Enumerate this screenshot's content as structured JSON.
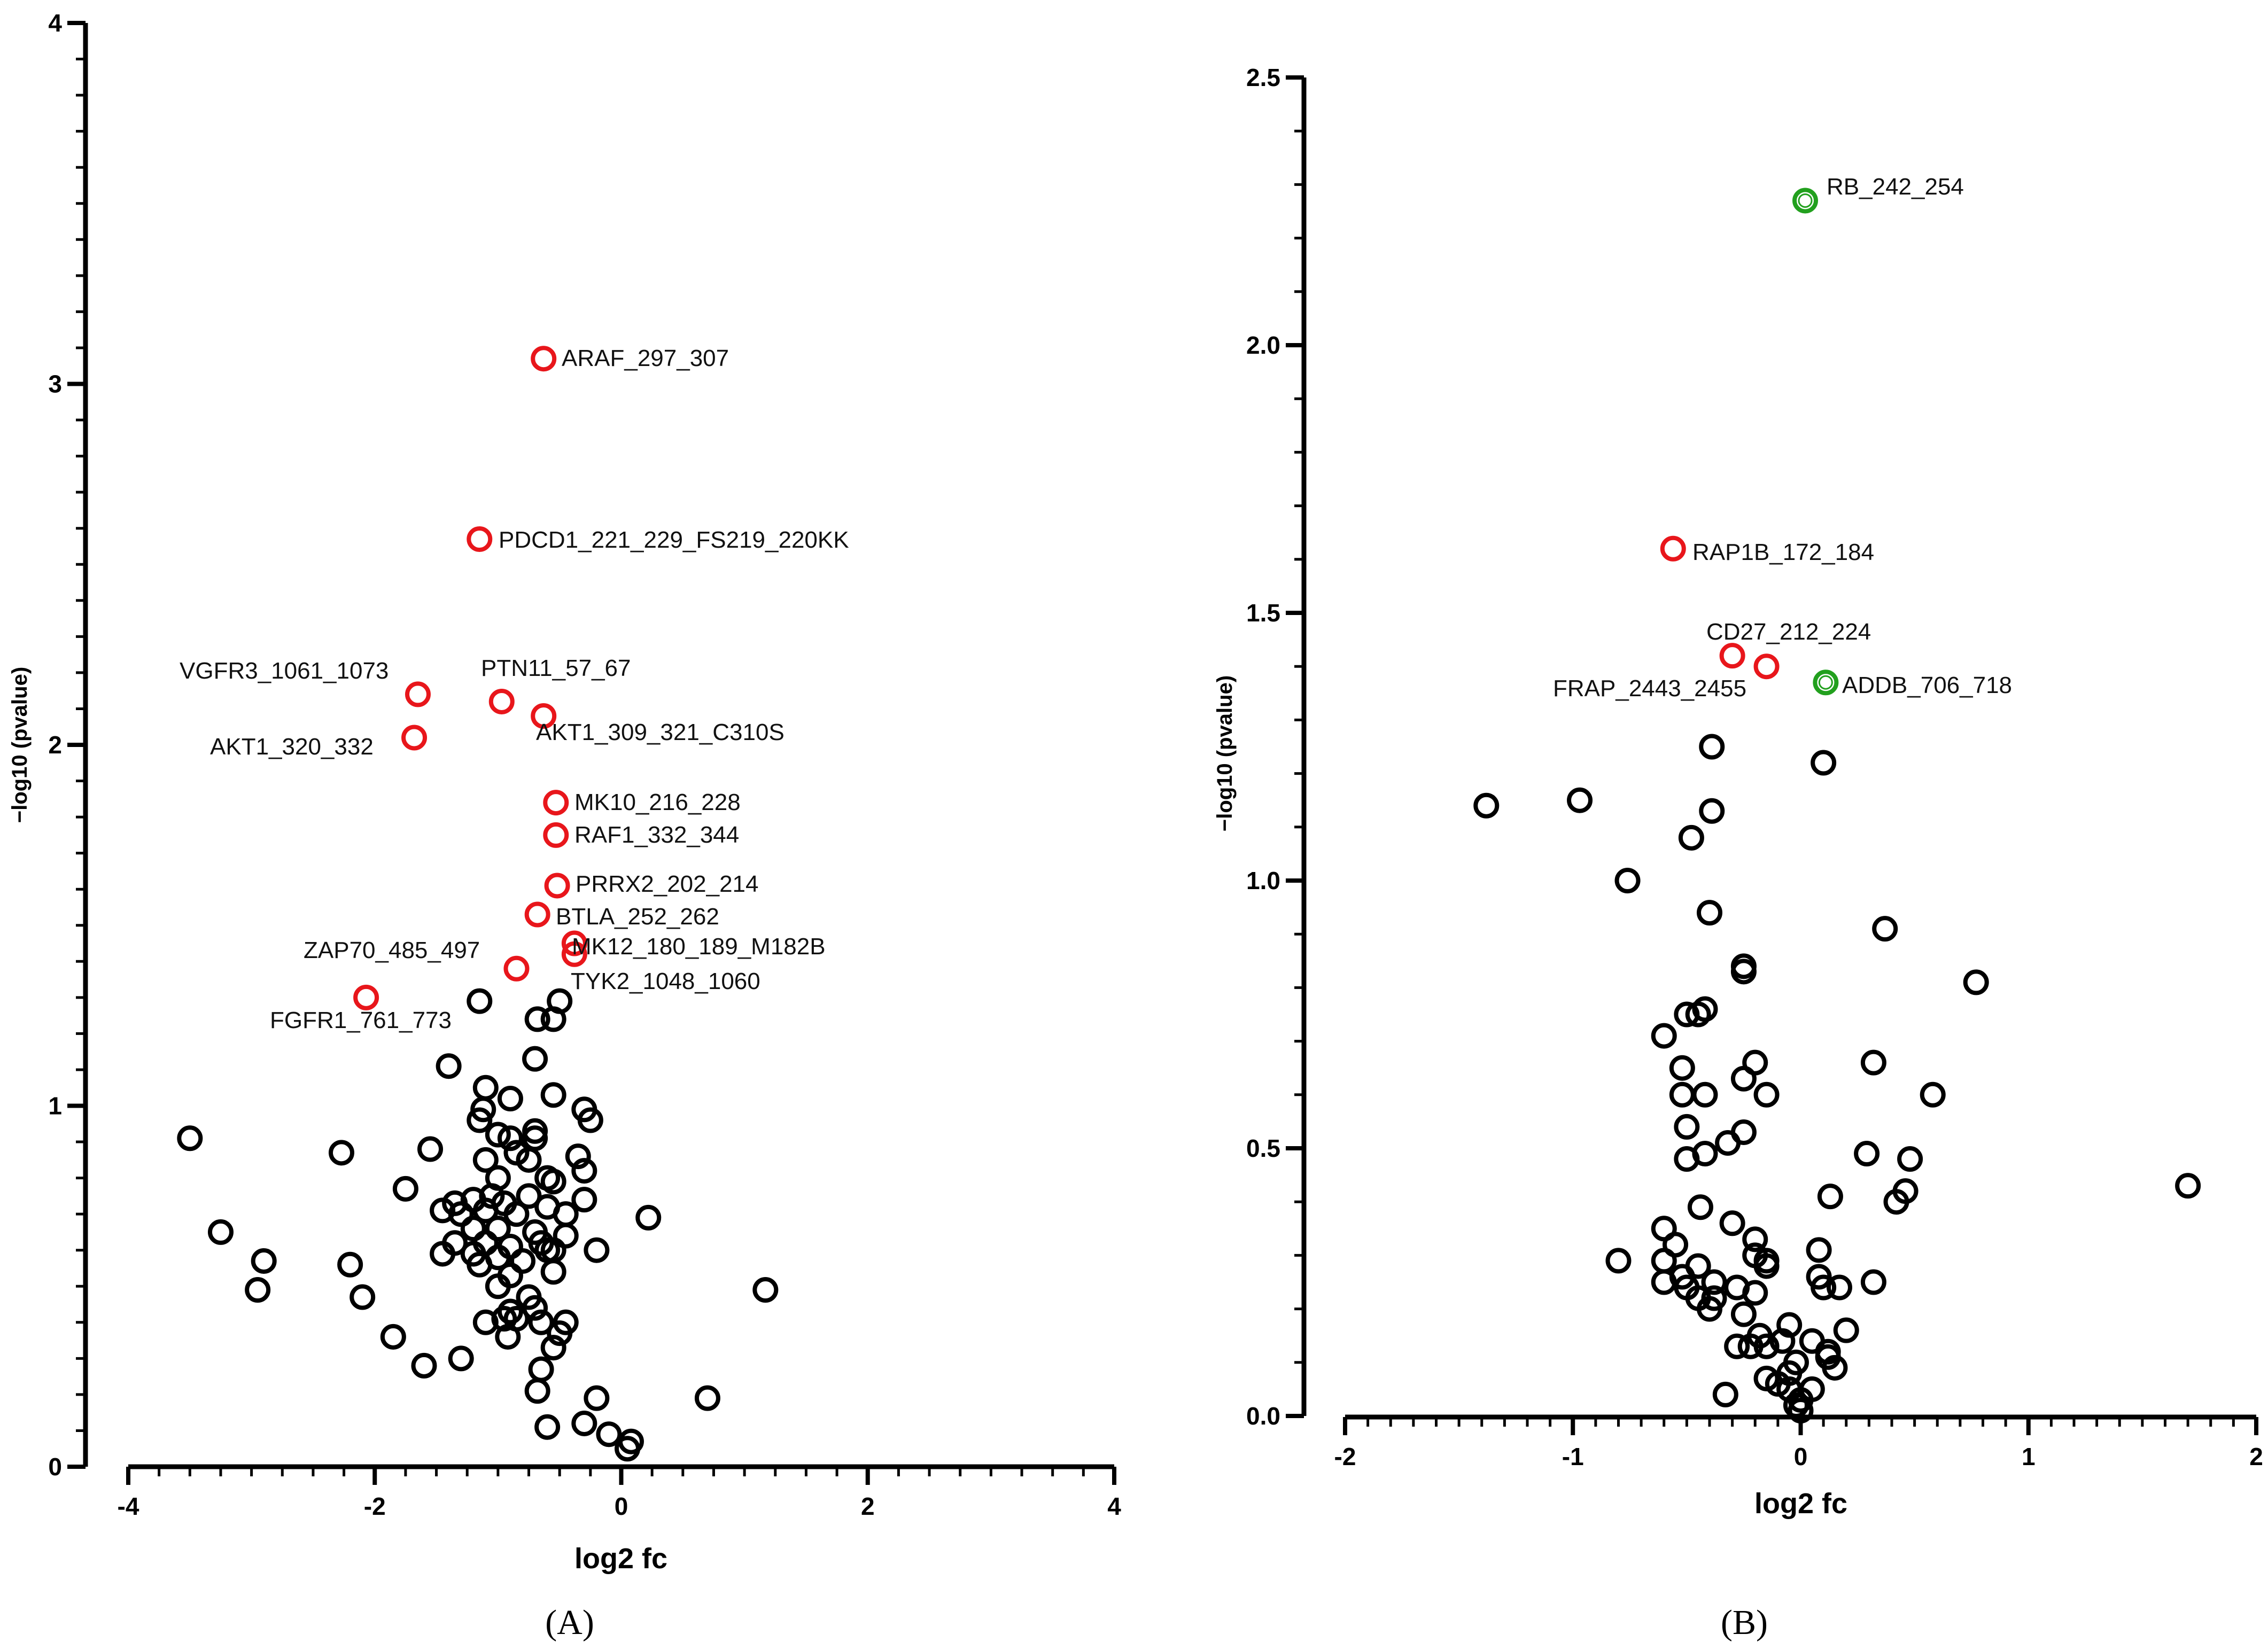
{
  "colors": {
    "normal": "#000000",
    "sig_red": "#e8161b",
    "sig_green": "#22a01e"
  },
  "chart_data": [
    {
      "type": "scatter",
      "panel_label": "(A)",
      "xlabel": "log2 fc",
      "ylabel": "−log10 (pvalue)",
      "xlim": [
        -4,
        4
      ],
      "ylim": [
        0,
        4
      ],
      "xticks": [
        -4,
        -2,
        0,
        2,
        4
      ],
      "yticks": [
        0,
        1,
        2,
        3,
        4
      ],
      "highlighted": [
        {
          "x": -0.63,
          "y": 3.07,
          "label": "ARAF_297_307",
          "color": "red"
        },
        {
          "x": -1.15,
          "y": 2.57,
          "label": "PDCD1_221_229_FS219_220KK",
          "color": "red"
        },
        {
          "x": -1.65,
          "y": 2.14,
          "label": "VGFR3_1061_1073",
          "color": "red"
        },
        {
          "x": -0.97,
          "y": 2.12,
          "label": "PTN11_57_67",
          "color": "red"
        },
        {
          "x": -0.63,
          "y": 2.08,
          "label": "AKT1_309_321_C310S",
          "color": "red"
        },
        {
          "x": -1.68,
          "y": 2.02,
          "label": "AKT1_320_332",
          "color": "red"
        },
        {
          "x": -0.53,
          "y": 1.84,
          "label": "MK10_216_228",
          "color": "red"
        },
        {
          "x": -0.53,
          "y": 1.75,
          "label": "RAF1_332_344",
          "color": "red"
        },
        {
          "x": -0.52,
          "y": 1.61,
          "label": "PRRX2_202_214",
          "color": "red"
        },
        {
          "x": -0.68,
          "y": 1.53,
          "label": "BTLA_252_262",
          "color": "red"
        },
        {
          "x": -0.38,
          "y": 1.45,
          "label": "MK12_180_189_M182B",
          "color": "red"
        },
        {
          "x": -0.38,
          "y": 1.42,
          "label": "",
          "color": "red"
        },
        {
          "x": -0.85,
          "y": 1.38,
          "label": "ZAP70_485_497",
          "color": "red"
        },
        {
          "x": -2.07,
          "y": 1.3,
          "label": "FGFR1_761_773",
          "color": "red"
        }
      ],
      "callout_labels": [
        "TYK2_1048_1060"
      ],
      "points": [
        [
          -1.15,
          1.29
        ],
        [
          -0.5,
          1.29
        ],
        [
          -0.55,
          1.24
        ],
        [
          -0.68,
          1.24
        ],
        [
          -1.4,
          1.11
        ],
        [
          -0.7,
          1.13
        ],
        [
          -1.1,
          1.05
        ],
        [
          -0.9,
          1.02
        ],
        [
          -0.55,
          1.03
        ],
        [
          -1.12,
          0.99
        ],
        [
          -0.3,
          0.99
        ],
        [
          -1.15,
          0.96
        ],
        [
          -0.25,
          0.96
        ],
        [
          -1.0,
          0.92
        ],
        [
          -0.7,
          0.93
        ],
        [
          -0.9,
          0.91
        ],
        [
          -0.7,
          0.91
        ],
        [
          -3.5,
          0.91
        ],
        [
          -2.27,
          0.87
        ],
        [
          -1.55,
          0.88
        ],
        [
          -0.85,
          0.87
        ],
        [
          -0.35,
          0.86
        ],
        [
          -1.1,
          0.85
        ],
        [
          -0.75,
          0.85
        ],
        [
          -1.0,
          0.8
        ],
        [
          -0.6,
          0.8
        ],
        [
          -0.3,
          0.82
        ],
        [
          -0.55,
          0.79
        ],
        [
          -1.75,
          0.77
        ],
        [
          -1.35,
          0.73
        ],
        [
          -1.2,
          0.74
        ],
        [
          -1.05,
          0.75
        ],
        [
          -0.95,
          0.73
        ],
        [
          -0.75,
          0.75
        ],
        [
          -0.6,
          0.72
        ],
        [
          -0.3,
          0.74
        ],
        [
          -1.45,
          0.71
        ],
        [
          -1.3,
          0.7
        ],
        [
          -1.1,
          0.71
        ],
        [
          -0.85,
          0.7
        ],
        [
          -0.45,
          0.7
        ],
        [
          0.22,
          0.69
        ],
        [
          -1.2,
          0.66
        ],
        [
          -1.0,
          0.66
        ],
        [
          -0.7,
          0.65
        ],
        [
          -0.45,
          0.64
        ],
        [
          -3.25,
          0.65
        ],
        [
          -1.35,
          0.62
        ],
        [
          -1.1,
          0.62
        ],
        [
          -0.9,
          0.61
        ],
        [
          -0.65,
          0.62
        ],
        [
          -0.55,
          0.6
        ],
        [
          -0.2,
          0.6
        ],
        [
          -2.9,
          0.57
        ],
        [
          -1.45,
          0.59
        ],
        [
          -1.2,
          0.59
        ],
        [
          -1.0,
          0.58
        ],
        [
          -0.8,
          0.57
        ],
        [
          -0.6,
          0.6
        ],
        [
          -2.2,
          0.56
        ],
        [
          -1.15,
          0.56
        ],
        [
          -0.9,
          0.53
        ],
        [
          -0.55,
          0.54
        ],
        [
          -2.95,
          0.49
        ],
        [
          1.17,
          0.49
        ],
        [
          -1.0,
          0.5
        ],
        [
          -0.75,
          0.47
        ],
        [
          -2.1,
          0.47
        ],
        [
          -0.9,
          0.43
        ],
        [
          -0.7,
          0.44
        ],
        [
          -0.95,
          0.41
        ],
        [
          -0.85,
          0.41
        ],
        [
          -0.65,
          0.4
        ],
        [
          -1.1,
          0.4
        ],
        [
          -0.45,
          0.4
        ],
        [
          -0.5,
          0.37
        ],
        [
          -0.92,
          0.36
        ],
        [
          -1.85,
          0.36
        ],
        [
          -0.55,
          0.33
        ],
        [
          -1.3,
          0.3
        ],
        [
          -1.6,
          0.28
        ],
        [
          -0.65,
          0.27
        ],
        [
          -0.68,
          0.21
        ],
        [
          0.7,
          0.19
        ],
        [
          -0.2,
          0.19
        ],
        [
          -0.3,
          0.12
        ],
        [
          -0.6,
          0.11
        ],
        [
          -0.1,
          0.09
        ],
        [
          0.08,
          0.07
        ],
        [
          0.05,
          0.05
        ]
      ]
    },
    {
      "type": "scatter",
      "panel_label": "(B)",
      "xlabel": "log2 fc",
      "ylabel": "−log10 (pvalue)",
      "xlim": [
        -2,
        2
      ],
      "ylim": [
        0,
        2.5
      ],
      "xticks": [
        -2,
        -1,
        0,
        1,
        2
      ],
      "yticks": [
        0.0,
        0.5,
        1.0,
        1.5,
        2.0,
        2.5
      ],
      "highlighted": [
        {
          "x": 0.02,
          "y": 2.27,
          "label": "RB_242_254",
          "color": "green"
        },
        {
          "x": -0.56,
          "y": 1.62,
          "label": "RAP1B_172_184",
          "color": "red"
        },
        {
          "x": -0.3,
          "y": 1.42,
          "label": "CD27_212_224",
          "color": "red"
        },
        {
          "x": -0.15,
          "y": 1.4,
          "label": "FRAP_2443_2455",
          "color": "red"
        },
        {
          "x": 0.11,
          "y": 1.37,
          "label": "ADDB_706_718",
          "color": "green"
        }
      ],
      "points": [
        [
          -0.39,
          1.25
        ],
        [
          0.1,
          1.22
        ],
        [
          -1.38,
          1.14
        ],
        [
          -0.97,
          1.15
        ],
        [
          -0.39,
          1.13
        ],
        [
          -0.48,
          1.08
        ],
        [
          -0.76,
          1.0
        ],
        [
          -0.4,
          0.94
        ],
        [
          0.37,
          0.91
        ],
        [
          -0.25,
          0.84
        ],
        [
          -0.25,
          0.83
        ],
        [
          0.77,
          0.81
        ],
        [
          -0.42,
          0.76
        ],
        [
          -0.45,
          0.75
        ],
        [
          -0.5,
          0.75
        ],
        [
          -0.6,
          0.71
        ],
        [
          -0.52,
          0.65
        ],
        [
          -0.2,
          0.66
        ],
        [
          0.32,
          0.66
        ],
        [
          -0.25,
          0.63
        ],
        [
          -0.52,
          0.6
        ],
        [
          -0.42,
          0.6
        ],
        [
          -0.15,
          0.6
        ],
        [
          0.58,
          0.6
        ],
        [
          -0.5,
          0.54
        ],
        [
          -0.25,
          0.53
        ],
        [
          -0.32,
          0.51
        ],
        [
          -0.42,
          0.49
        ],
        [
          -0.5,
          0.48
        ],
        [
          0.29,
          0.49
        ],
        [
          0.48,
          0.48
        ],
        [
          1.7,
          0.43
        ],
        [
          0.46,
          0.42
        ],
        [
          0.42,
          0.4
        ],
        [
          0.13,
          0.41
        ],
        [
          -0.44,
          0.39
        ],
        [
          -0.3,
          0.36
        ],
        [
          -0.6,
          0.35
        ],
        [
          -0.2,
          0.33
        ],
        [
          -0.55,
          0.32
        ],
        [
          0.08,
          0.31
        ],
        [
          -0.2,
          0.3
        ],
        [
          -0.8,
          0.29
        ],
        [
          -0.6,
          0.29
        ],
        [
          -0.15,
          0.29
        ],
        [
          -0.45,
          0.28
        ],
        [
          -0.15,
          0.28
        ],
        [
          -0.52,
          0.26
        ],
        [
          -0.38,
          0.25
        ],
        [
          -0.6,
          0.25
        ],
        [
          0.08,
          0.26
        ],
        [
          0.32,
          0.25
        ],
        [
          -0.5,
          0.24
        ],
        [
          -0.28,
          0.24
        ],
        [
          0.1,
          0.24
        ],
        [
          0.17,
          0.24
        ],
        [
          -0.45,
          0.22
        ],
        [
          -0.38,
          0.22
        ],
        [
          -0.2,
          0.23
        ],
        [
          -0.4,
          0.2
        ],
        [
          -0.25,
          0.19
        ],
        [
          -0.05,
          0.17
        ],
        [
          0.2,
          0.16
        ],
        [
          -0.18,
          0.15
        ],
        [
          -0.08,
          0.14
        ],
        [
          -0.15,
          0.13
        ],
        [
          -0.28,
          0.13
        ],
        [
          0.05,
          0.14
        ],
        [
          0.12,
          0.12
        ],
        [
          -0.22,
          0.13
        ],
        [
          0.12,
          0.11
        ],
        [
          -0.02,
          0.1
        ],
        [
          0.15,
          0.09
        ],
        [
          -0.05,
          0.08
        ],
        [
          -0.15,
          0.07
        ],
        [
          -0.1,
          0.06
        ],
        [
          0.05,
          0.05
        ],
        [
          -0.05,
          0.05
        ],
        [
          -0.33,
          0.04
        ],
        [
          0.0,
          0.03
        ],
        [
          -0.02,
          0.02
        ],
        [
          0.0,
          0.01
        ]
      ]
    }
  ]
}
